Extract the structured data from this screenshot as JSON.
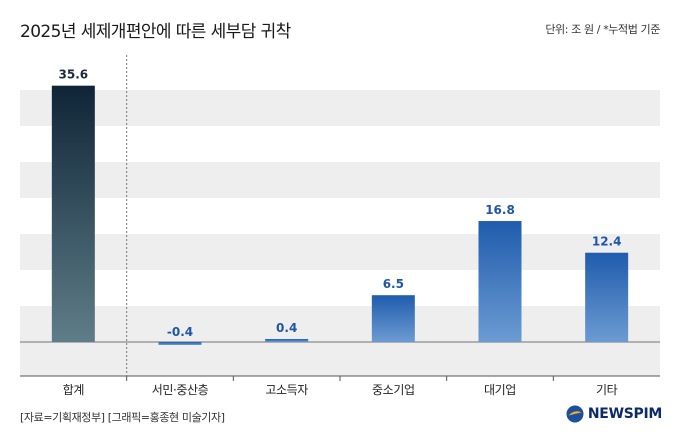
{
  "header": {
    "title": "2025년 세제개편안에 따른 세부담 귀착",
    "unit_note": "단위: 조 원 / *누적법 기준"
  },
  "footer": {
    "source": "[자료=기획재정부] [그래픽=홍종현 미술기자]",
    "logo_text": "NEWSPIM"
  },
  "colors": {
    "total_bar_top": "#0f2537",
    "total_bar_bottom": "#5f7d88",
    "bar_top": "#1f5cad",
    "bar_bottom": "#6c9bd2",
    "band": "#eeeeee",
    "label_blue": "#1f56a8",
    "label_dark": "#1b2a3a"
  },
  "chart_data": {
    "type": "bar",
    "categories": [
      "합계",
      "서민·중산층",
      "고소득자",
      "중소기업",
      "대기업",
      "기타"
    ],
    "values": [
      35.6,
      -0.4,
      0.4,
      6.5,
      16.8,
      12.4
    ],
    "value_labels": [
      "35.6",
      "-0.4",
      "0.4",
      "6.5",
      "16.8",
      "12.4"
    ],
    "ylim": [
      -5,
      40
    ],
    "grid": "alternating horizontal bands",
    "separator_after_category": 0
  }
}
